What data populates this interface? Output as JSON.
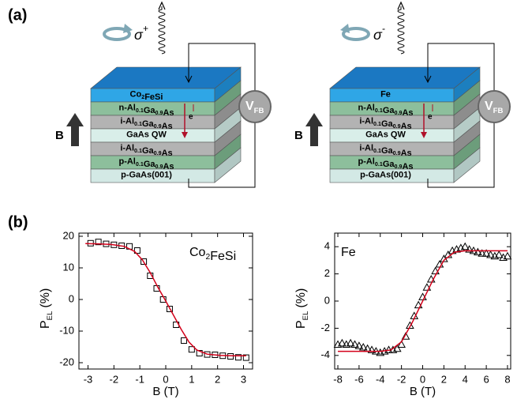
{
  "labels": {
    "a": "(a)",
    "b": "(b)"
  },
  "diagrams": [
    {
      "polarization": {
        "symbol": "σ",
        "superscript": "+"
      },
      "layers": [
        "Co2FeSi",
        "n-Al0.1Ga0.9As",
        "i-Al0.1Ga0.9As",
        "GaAs QW",
        "i-Al0.1Ga0.9As",
        "p-Al0.1Ga0.9As",
        "p-GaAs(001)"
      ],
      "electron": "e",
      "field": "B",
      "meter": {
        "main": "V",
        "sub": "FB"
      }
    },
    {
      "polarization": {
        "symbol": "σ",
        "superscript": "-"
      },
      "layers": [
        "Fe",
        "n-Al0.1Ga0.9As",
        "i-Al0.1Ga0.9As",
        "GaAs QW",
        "i-Al0.1Ga0.9As",
        "p-Al0.1Ga0.9As",
        "p-GaAs(001)"
      ],
      "electron": "e",
      "field": "B",
      "meter": {
        "main": "V",
        "sub": "FB"
      }
    }
  ],
  "chart_data": [
    {
      "type": "scatter",
      "annotation": "Co2FeSi",
      "xlabel": "B (T)",
      "ylabel": {
        "main": "P",
        "sub": "EL",
        "unit": "(%)"
      },
      "xlim": [
        -3.35,
        3.35
      ],
      "xticks": [
        -3,
        -2,
        -1,
        0,
        1,
        2,
        3
      ],
      "ylim": [
        -22,
        21
      ],
      "yticks": [
        -20,
        -10,
        0,
        10,
        20
      ],
      "series": [
        {
          "marker": "square",
          "color": "#000000",
          "x": [
            -2.9,
            -2.6,
            -2.3,
            -2.0,
            -1.7,
            -1.4,
            -1.1,
            -0.85,
            -0.6,
            -0.35,
            -0.1,
            0.15,
            0.4,
            0.7,
            1.0,
            1.3,
            1.6,
            1.9,
            2.2,
            2.5,
            2.8,
            3.1
          ],
          "values": [
            17.8,
            18.2,
            17.6,
            17.3,
            17.0,
            16.8,
            15.5,
            12.0,
            7.5,
            3.5,
            0.0,
            -3.0,
            -8.0,
            -13.0,
            -15.8,
            -17.0,
            -17.4,
            -17.5,
            -17.8,
            -18.0,
            -18.3,
            -18.4
          ]
        },
        {
          "marker": "line",
          "color": "#d4001a",
          "x": [
            -3.1,
            -2.6,
            -2.1,
            -1.6,
            -1.2,
            -0.9,
            -0.6,
            -0.3,
            0,
            0.3,
            0.6,
            0.9,
            1.2,
            1.6,
            2.1,
            2.6,
            3.1
          ],
          "values": [
            17.7,
            17.6,
            17.4,
            16.8,
            15.2,
            12.5,
            8.5,
            3.8,
            -0.5,
            -5.0,
            -9.5,
            -13.5,
            -16.0,
            -17.3,
            -17.7,
            -17.8,
            -17.8
          ]
        }
      ]
    },
    {
      "type": "scatter",
      "annotation": "Fe",
      "xlabel": "B (T)",
      "ylabel": {
        "main": "P",
        "sub": "EL",
        "unit": "(%)"
      },
      "xlim": [
        -8.3,
        8.3
      ],
      "xticks": [
        -8,
        -6,
        -4,
        -2,
        0,
        2,
        4,
        6,
        8
      ],
      "ylim": [
        -5,
        5
      ],
      "yticks": [
        -4,
        -2,
        0,
        2,
        4
      ],
      "series": [
        {
          "marker": "triangle",
          "color": "#000000",
          "x": [
            -8,
            -7.6,
            -7.2,
            -6.8,
            -6.4,
            -6.0,
            -5.6,
            -5.2,
            -4.8,
            -4.4,
            -4.0,
            -3.6,
            -3.2,
            -2.8,
            -2.4,
            -2.0,
            -1.6,
            -1.2,
            -0.8,
            -0.4,
            0,
            0.4,
            0.8,
            1.2,
            1.6,
            2.0,
            2.4,
            2.8,
            3.2,
            3.6,
            4.0,
            4.4,
            4.8,
            5.2,
            5.6,
            6.0,
            6.4,
            6.8,
            7.2,
            7.6,
            8.0
          ],
          "values": [
            -3.2,
            -3.1,
            -3.2,
            -3.1,
            -3.2,
            -3.3,
            -3.4,
            -3.5,
            -3.6,
            -3.7,
            -3.8,
            -3.7,
            -3.6,
            -3.6,
            -3.5,
            -3.2,
            -2.6,
            -1.8,
            -1.1,
            -0.3,
            0.3,
            1.0,
            1.6,
            2.2,
            2.7,
            3.1,
            3.4,
            3.7,
            3.8,
            3.9,
            4.0,
            3.8,
            3.7,
            3.6,
            3.5,
            3.5,
            3.4,
            3.3,
            3.4,
            3.2,
            3.3
          ]
        },
        {
          "marker": "line",
          "color": "#d4001a",
          "x": [
            -8,
            -4,
            -3,
            -2,
            -1,
            0,
            1,
            2,
            3,
            4,
            8
          ],
          "values": [
            -3.7,
            -3.7,
            -3.6,
            -3.0,
            -1.6,
            0,
            1.6,
            3.0,
            3.6,
            3.7,
            3.7
          ]
        }
      ]
    }
  ]
}
